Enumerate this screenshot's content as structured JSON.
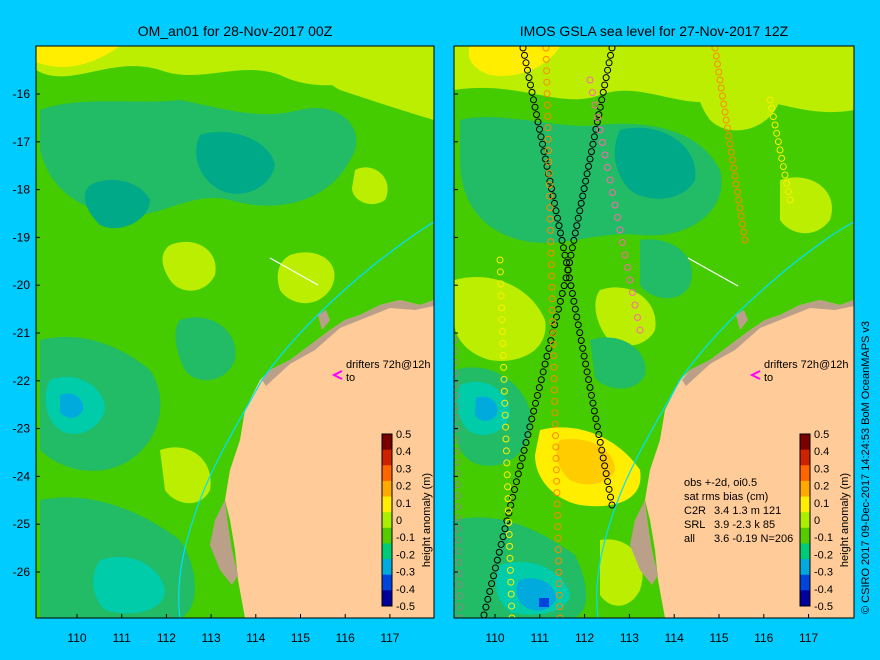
{
  "left_panel": {
    "title": "OM_an01 for 28-Nov-2017 00Z",
    "drifters_label": "drifters 72h@12h",
    "drifters_sub": "to"
  },
  "right_panel": {
    "title": "IMOS GSLA sea level  for 27-Nov-2017 12Z",
    "drifters_label": "drifters 72h@12h",
    "drifters_sub": "to",
    "stats": {
      "line1": "obs +-2d, oi0.5",
      "line2": "sat rms bias (cm)",
      "rows": [
        {
          "sat": "C2R",
          "vals": "3.4  1.3 m 121"
        },
        {
          "sat": "SRL",
          "vals": "3.9 -2.3 k 85"
        },
        {
          "sat": "all",
          "vals": "3.6 -0.19 N=206"
        }
      ]
    }
  },
  "axes": {
    "y_ticks": [
      "-16",
      "-17",
      "-18",
      "-19",
      "-20",
      "-21",
      "-22",
      "-23",
      "-24",
      "-25",
      "-26"
    ],
    "x_ticks": [
      "110",
      "111",
      "112",
      "113",
      "114",
      "115",
      "116",
      "117"
    ]
  },
  "colorbar": {
    "label": "height anomaly (m)",
    "ticks": [
      "0.5",
      "0.4",
      "0.3",
      "0.2",
      "0.1",
      "0",
      "-0.1",
      "-0.2",
      "-0.3",
      "-0.4",
      "-0.5"
    ],
    "colors": [
      "#7a0000",
      "#cc2200",
      "#ff6600",
      "#ffaa00",
      "#ffee00",
      "#aaee00",
      "#55cc00",
      "#00cc77",
      "#00aadd",
      "#0044dd",
      "#00009a"
    ]
  },
  "credit": "© CSIRO 2017  09-Dec-2017 14:24:53 BoM OceanMAPS v3",
  "colors": {
    "background": "#00ccff",
    "land": "#ffcc99",
    "coast": "#bba089",
    "green": "#44cc00",
    "yellowgreen": "#bbee00",
    "teal": "#22bb66",
    "cyan": "#00ccaa",
    "yellow": "#ffee00"
  }
}
